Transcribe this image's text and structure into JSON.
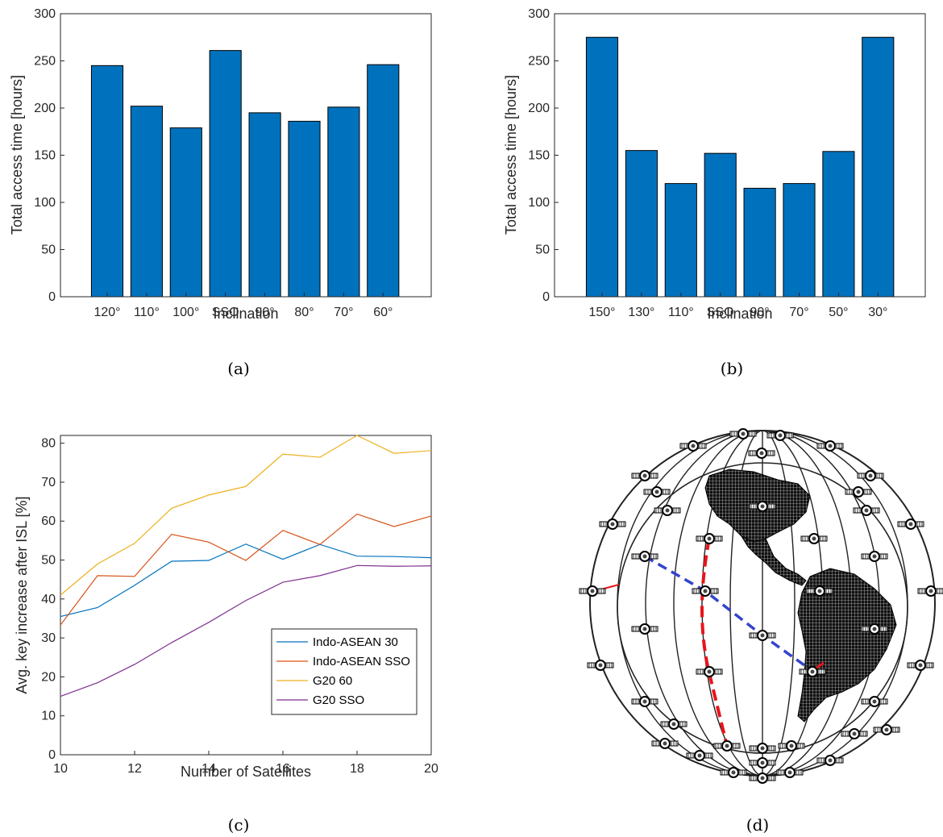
{
  "panels": {
    "a": {
      "caption": "(a)"
    },
    "b": {
      "caption": "(b)"
    },
    "c": {
      "caption": "(c)"
    },
    "d": {
      "caption": "(d)"
    }
  },
  "colors": {
    "bar": "#0072BD",
    "series": [
      "#0072BD",
      "#D95319",
      "#EDB120",
      "#7E2F8E"
    ],
    "isl_path_red": "#E8141B",
    "isl_path_blue": "#3344CC"
  },
  "chart_data": [
    {
      "id": "a",
      "type": "bar",
      "categories": [
        "120°",
        "110°",
        "100°",
        "SSO",
        "90°",
        "80°",
        "70°",
        "60°"
      ],
      "values": [
        245,
        202,
        179,
        261,
        195,
        186,
        201,
        246
      ],
      "xlabel": "Inclination",
      "ylabel": "Total access time [hours]",
      "ylim": [
        0,
        300
      ],
      "yticks": [
        0,
        50,
        100,
        150,
        200,
        250,
        300
      ]
    },
    {
      "id": "b",
      "type": "bar",
      "categories": [
        "150°",
        "130°",
        "110°",
        "SSO",
        "90°",
        "70°",
        "50°",
        "30°"
      ],
      "values": [
        275,
        155,
        120,
        152,
        115,
        120,
        154,
        275
      ],
      "xlabel": "Inclination",
      "ylabel": "Total access time [hours]",
      "ylim": [
        0,
        300
      ],
      "yticks": [
        0,
        50,
        100,
        150,
        200,
        250,
        300
      ]
    },
    {
      "id": "c",
      "type": "line",
      "x": [
        10,
        11,
        12,
        13,
        14,
        15,
        16,
        17,
        18,
        19,
        20
      ],
      "series": [
        {
          "name": "Indo-ASEAN 30",
          "values": [
            35.5,
            37.8,
            43.5,
            49.7,
            49.9,
            54.1,
            50.2,
            54.0,
            51.0,
            50.9,
            50.6
          ]
        },
        {
          "name": "Indo-ASEAN SSO",
          "values": [
            33.3,
            46.0,
            45.8,
            56.6,
            54.6,
            49.9,
            57.6,
            54.0,
            61.8,
            58.6,
            61.3
          ]
        },
        {
          "name": "G20 60",
          "values": [
            41.0,
            49.0,
            54.3,
            63.3,
            66.7,
            68.9,
            77.2,
            76.4,
            82.0,
            77.4,
            78.1
          ]
        },
        {
          "name": "G20 SSO",
          "values": [
            15.0,
            18.5,
            23.2,
            28.8,
            34.0,
            39.6,
            44.3,
            46.0,
            48.6,
            48.4,
            48.5
          ]
        }
      ],
      "xlabel": "Number of Satellites",
      "ylabel": "Avg. key increase after ISL [%]",
      "xlim": [
        10,
        20
      ],
      "ylim": [
        0,
        82
      ],
      "xticks": [
        10,
        12,
        14,
        16,
        18,
        20
      ],
      "yticks": [
        0,
        10,
        20,
        30,
        40,
        50,
        60,
        70,
        80
      ],
      "legend": "lower-right"
    }
  ]
}
